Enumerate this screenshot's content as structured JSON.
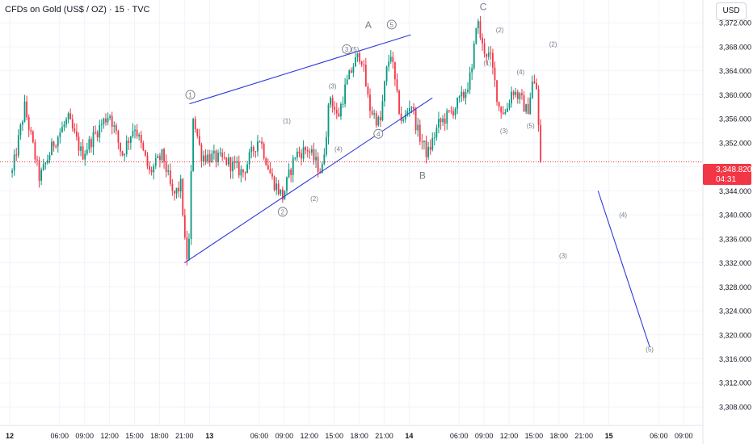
{
  "header": {
    "title": "CFDs on Gold (US$ / OZ) · 15 · TVC",
    "currency": "USD"
  },
  "colors": {
    "up": "#089981",
    "down": "#f23645",
    "trend": "#2f3bdb",
    "label": "#787b86",
    "grid": "#f0f3fa",
    "price_line": "#f23645"
  },
  "last_price": {
    "value": "3,348.820",
    "countdown": "04:31"
  },
  "chart_data": {
    "type": "candlestick",
    "title": "CFDs on Gold (US$ / OZ) · 15 · TVC",
    "y_axis": {
      "range": [
        3305.5,
        3375.8
      ],
      "ticks": [
        "3,372.000",
        "3,368.000",
        "3,364.000",
        "3,360.000",
        "3,356.000",
        "3,352.000",
        "3,348.000",
        "3,344.000",
        "3,340.000",
        "3,336.000",
        "3,332.000",
        "3,328.000",
        "3,324.000",
        "3,320.000",
        "3,316.000",
        "3,312.000",
        "3,308.000"
      ],
      "tick_values": [
        3372,
        3368,
        3364,
        3360,
        3356,
        3352,
        3348,
        3344,
        3340,
        3336,
        3332,
        3328,
        3324,
        3320,
        3316,
        3312,
        3308
      ]
    },
    "x_axis": {
      "ticks": [
        "12",
        "06:00",
        "09:00",
        "12:00",
        "15:00",
        "18:00",
        "21:00",
        "13",
        "06:00",
        "09:00",
        "12:00",
        "15:00",
        "18:00",
        "21:00",
        "14",
        "06:00",
        "09:00",
        "12:00",
        "15:00",
        "18:00",
        "21:00",
        "15",
        "06:00",
        "09:00"
      ],
      "tick_time_hours": [
        0,
        6,
        9,
        12,
        15,
        18,
        21,
        24,
        30,
        33,
        36,
        39,
        42,
        45,
        48,
        54,
        57,
        60,
        63,
        66,
        69,
        72,
        78,
        81
      ],
      "bold": [
        "12",
        "13",
        "14",
        "15"
      ]
    },
    "time_range_hours": [
      0,
      83.6
    ],
    "last_price": 3348.82,
    "anchors": [
      {
        "t": 0.3,
        "p": 3347
      },
      {
        "t": 1.8,
        "p": 3358
      },
      {
        "t": 3.6,
        "p": 3346
      },
      {
        "t": 5.3,
        "p": 3352
      },
      {
        "t": 7.0,
        "p": 3356
      },
      {
        "t": 8.7,
        "p": 3350
      },
      {
        "t": 10.5,
        "p": 3354
      },
      {
        "t": 12.0,
        "p": 3357
      },
      {
        "t": 13.5,
        "p": 3350
      },
      {
        "t": 15.0,
        "p": 3355
      },
      {
        "t": 16.8,
        "p": 3347
      },
      {
        "t": 18.4,
        "p": 3350
      },
      {
        "t": 19.6,
        "p": 3343
      },
      {
        "t": 20.6,
        "p": 3345
      },
      {
        "t": 21.2,
        "p": 3332
      },
      {
        "t": 21.6,
        "p": 3336
      },
      {
        "t": 22.0,
        "p": 3357
      },
      {
        "t": 23.0,
        "p": 3350
      },
      {
        "t": 26.0,
        "p": 3349
      },
      {
        "t": 28.0,
        "p": 3347
      },
      {
        "t": 30.0,
        "p": 3353
      },
      {
        "t": 31.5,
        "p": 3346
      },
      {
        "t": 32.8,
        "p": 3343
      },
      {
        "t": 34.3,
        "p": 3350
      },
      {
        "t": 35.8,
        "p": 3351
      },
      {
        "t": 37.5,
        "p": 3347
      },
      {
        "t": 38.5,
        "p": 3360
      },
      {
        "t": 39.4,
        "p": 3356
      },
      {
        "t": 40.3,
        "p": 3361
      },
      {
        "t": 41.3,
        "p": 3365
      },
      {
        "t": 42.2,
        "p": 3367
      },
      {
        "t": 43.2,
        "p": 3358
      },
      {
        "t": 44.5,
        "p": 3355
      },
      {
        "t": 45.0,
        "p": 3361
      },
      {
        "t": 45.4,
        "p": 3365
      },
      {
        "t": 45.8,
        "p": 3367
      },
      {
        "t": 46.6,
        "p": 3359
      },
      {
        "t": 47.2,
        "p": 3355
      },
      {
        "t": 48.2,
        "p": 3359
      },
      {
        "t": 49.0,
        "p": 3354
      },
      {
        "t": 50.2,
        "p": 3350
      },
      {
        "t": 51.5,
        "p": 3355
      },
      {
        "t": 53.0,
        "p": 3357
      },
      {
        "t": 54.6,
        "p": 3360
      },
      {
        "t": 55.6,
        "p": 3364
      },
      {
        "t": 56.1,
        "p": 3373
      },
      {
        "t": 56.8,
        "p": 3368
      },
      {
        "t": 57.8,
        "p": 3366
      },
      {
        "t": 58.8,
        "p": 3358
      },
      {
        "t": 59.6,
        "p": 3357
      },
      {
        "t": 60.4,
        "p": 3361
      },
      {
        "t": 61.5,
        "p": 3359
      },
      {
        "t": 62.2,
        "p": 3357
      },
      {
        "t": 62.8,
        "p": 3362
      },
      {
        "t": 63.3,
        "p": 3361
      },
      {
        "t": 63.7,
        "p": 3351
      },
      {
        "t": 64.0,
        "p": 3348.82
      }
    ],
    "trendlines": [
      {
        "name": "wedge-upper",
        "p1": {
          "t": 21.6,
          "p": 3358.5
        },
        "p2": {
          "t": 48.2,
          "p": 3370
        }
      },
      {
        "name": "wedge-lower",
        "p1": {
          "t": 21.0,
          "p": 3332
        },
        "p2": {
          "t": 50.8,
          "p": 3359.5
        }
      },
      {
        "name": "projection",
        "p1": {
          "t": 70.7,
          "p": 3344
        },
        "p2": {
          "t": 76.9,
          "p": 3318
        }
      }
    ],
    "annotations": [
      {
        "text": "1",
        "t": 21.7,
        "p": 3360,
        "circled": true
      },
      {
        "text": "2",
        "t": 32.8,
        "p": 3340.5,
        "circled": true
      },
      {
        "text": "3",
        "t": 40.5,
        "p": 3367.6,
        "circled": true
      },
      {
        "text": "(5)",
        "t": 41.5,
        "p": 3367.6,
        "circled": false
      },
      {
        "text": "A",
        "t": 43.1,
        "p": 3371.5,
        "circled": false,
        "large": true
      },
      {
        "text": "5",
        "t": 45.9,
        "p": 3371.7,
        "circled": true
      },
      {
        "text": "4",
        "t": 44.3,
        "p": 3353.5,
        "circled": true
      },
      {
        "text": "B",
        "t": 49.6,
        "p": 3346.4,
        "circled": false,
        "large": true
      },
      {
        "text": "C",
        "t": 56.9,
        "p": 3374.5,
        "circled": false,
        "large": true
      },
      {
        "text": "(1)",
        "t": 33.3,
        "p": 3355.7,
        "circled": false
      },
      {
        "text": "(2)",
        "t": 36.6,
        "p": 3342.7,
        "circled": false
      },
      {
        "text": "(3)",
        "t": 38.8,
        "p": 3361.5,
        "circled": false
      },
      {
        "text": "(4)",
        "t": 39.5,
        "p": 3351.0,
        "circled": false
      },
      {
        "text": "(1)",
        "t": 57.4,
        "p": 3365.3,
        "circled": false
      },
      {
        "text": "(2)",
        "t": 58.9,
        "p": 3370.8,
        "circled": false
      },
      {
        "text": "(3)",
        "t": 59.4,
        "p": 3354.0,
        "circled": false
      },
      {
        "text": "(4)",
        "t": 61.4,
        "p": 3363.8,
        "circled": false
      },
      {
        "text": "(5)",
        "t": 62.6,
        "p": 3354.9,
        "circled": false
      },
      {
        "text": "(2)",
        "t": 65.3,
        "p": 3368.5,
        "circled": false
      },
      {
        "text": "(3)",
        "t": 66.5,
        "p": 3333.2,
        "circled": false
      },
      {
        "text": "(4)",
        "t": 73.7,
        "p": 3340.0,
        "circled": false
      },
      {
        "text": "(5)",
        "t": 76.9,
        "p": 3317.6,
        "circled": false
      }
    ]
  }
}
